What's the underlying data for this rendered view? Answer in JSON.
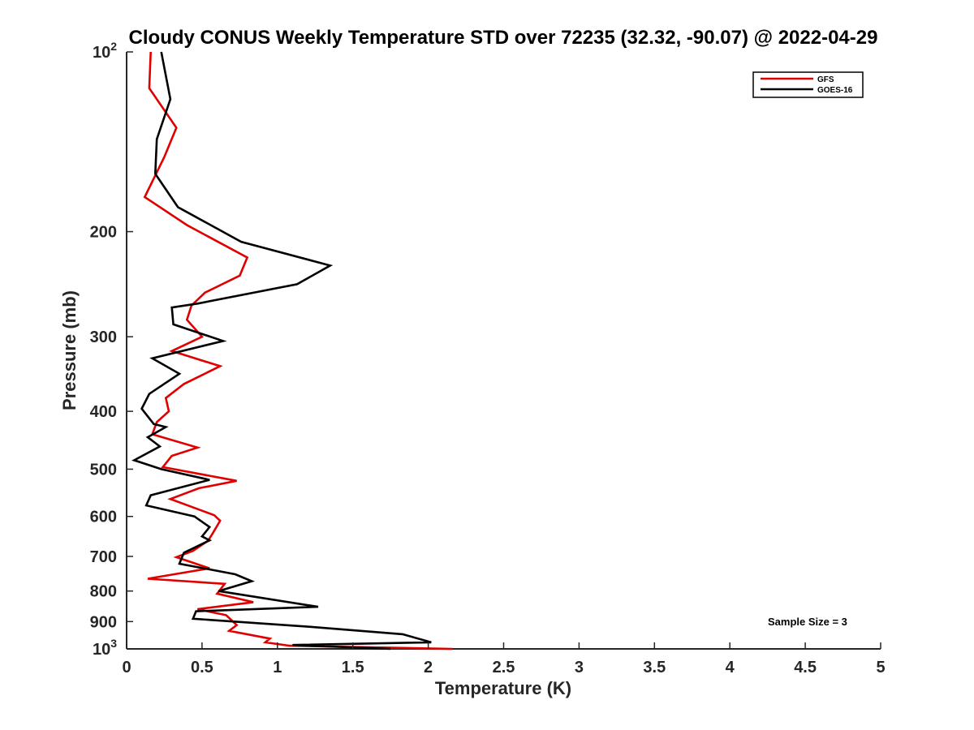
{
  "chart_data": {
    "type": "line",
    "title": "Cloudy CONUS Weekly Temperature STD over 72235 (32.32, -90.07) @ 2022-04-29",
    "xlabel": "Temperature (K)",
    "ylabel": "Pressure (mb)",
    "xlim": [
      0,
      5
    ],
    "ylim": [
      100,
      1000
    ],
    "y_scale": "log",
    "y_reversed": true,
    "grid": false,
    "legend_position": "top-right",
    "x_ticks": [
      {
        "value": 0,
        "label": "0"
      },
      {
        "value": 0.5,
        "label": "0.5"
      },
      {
        "value": 1,
        "label": "1"
      },
      {
        "value": 1.5,
        "label": "1.5"
      },
      {
        "value": 2,
        "label": "2"
      },
      {
        "value": 2.5,
        "label": "2.5"
      },
      {
        "value": 3,
        "label": "3"
      },
      {
        "value": 3.5,
        "label": "3.5"
      },
      {
        "value": 4,
        "label": "4"
      },
      {
        "value": 4.5,
        "label": "4.5"
      },
      {
        "value": 5,
        "label": "5"
      }
    ],
    "y_ticks": [
      {
        "value": 100,
        "label": "10",
        "sup": "2"
      },
      {
        "value": 200,
        "label": "200",
        "sup": ""
      },
      {
        "value": 300,
        "label": "300",
        "sup": ""
      },
      {
        "value": 400,
        "label": "400",
        "sup": ""
      },
      {
        "value": 500,
        "label": "500",
        "sup": ""
      },
      {
        "value": 600,
        "label": "600",
        "sup": ""
      },
      {
        "value": 700,
        "label": "700",
        "sup": ""
      },
      {
        "value": 800,
        "label": "800",
        "sup": ""
      },
      {
        "value": 900,
        "label": "900",
        "sup": ""
      },
      {
        "value": 1000,
        "label": "10",
        "sup": "3"
      }
    ],
    "series": [
      {
        "name": "GFS",
        "color": "#e00000",
        "points": [
          [
            0.16,
            100
          ],
          [
            0.15,
            115
          ],
          [
            0.33,
            134
          ],
          [
            0.25,
            150
          ],
          [
            0.12,
            175
          ],
          [
            0.4,
            195
          ],
          [
            0.8,
            221
          ],
          [
            0.75,
            237
          ],
          [
            0.52,
            253
          ],
          [
            0.43,
            266
          ],
          [
            0.4,
            281
          ],
          [
            0.5,
            300
          ],
          [
            0.3,
            317
          ],
          [
            0.62,
            336
          ],
          [
            0.38,
            360
          ],
          [
            0.26,
            380
          ],
          [
            0.28,
            400
          ],
          [
            0.2,
            417
          ],
          [
            0.17,
            437
          ],
          [
            0.47,
            460
          ],
          [
            0.3,
            475
          ],
          [
            0.24,
            496
          ],
          [
            0.73,
            523
          ],
          [
            0.48,
            538
          ],
          [
            0.29,
            561
          ],
          [
            0.43,
            578
          ],
          [
            0.58,
            597
          ],
          [
            0.62,
            610
          ],
          [
            0.57,
            641
          ],
          [
            0.54,
            659
          ],
          [
            0.44,
            685
          ],
          [
            0.33,
            702
          ],
          [
            0.55,
            733
          ],
          [
            0.14,
            763
          ],
          [
            0.65,
            778
          ],
          [
            0.6,
            808
          ],
          [
            0.84,
            835
          ],
          [
            0.47,
            858
          ],
          [
            0.66,
            878
          ],
          [
            0.73,
            912
          ],
          [
            0.68,
            933
          ],
          [
            0.95,
            961
          ],
          [
            0.92,
            975
          ],
          [
            1.08,
            988
          ],
          [
            2.16,
            1000
          ]
        ]
      },
      {
        "name": "GOES-16",
        "color": "#000000",
        "points": [
          [
            0.23,
            100
          ],
          [
            0.29,
            120
          ],
          [
            0.2,
            140
          ],
          [
            0.19,
            160
          ],
          [
            0.34,
            182
          ],
          [
            0.76,
            208
          ],
          [
            1.35,
            228
          ],
          [
            1.13,
            245
          ],
          [
            0.47,
            264
          ],
          [
            0.3,
            268
          ],
          [
            0.31,
            286
          ],
          [
            0.64,
            305
          ],
          [
            0.17,
            326
          ],
          [
            0.35,
            346
          ],
          [
            0.15,
            374
          ],
          [
            0.1,
            396
          ],
          [
            0.18,
            420
          ],
          [
            0.26,
            425
          ],
          [
            0.14,
            442
          ],
          [
            0.22,
            458
          ],
          [
            0.05,
            483
          ],
          [
            0.23,
            500
          ],
          [
            0.55,
            521
          ],
          [
            0.16,
            553
          ],
          [
            0.13,
            575
          ],
          [
            0.45,
            600
          ],
          [
            0.55,
            625
          ],
          [
            0.5,
            648
          ],
          [
            0.55,
            658
          ],
          [
            0.38,
            690
          ],
          [
            0.35,
            720
          ],
          [
            0.72,
            750
          ],
          [
            0.83,
            770
          ],
          [
            0.61,
            800
          ],
          [
            1.27,
            850
          ],
          [
            0.46,
            865
          ],
          [
            0.44,
            890
          ],
          [
            1.21,
            918
          ],
          [
            1.83,
            945
          ],
          [
            2.02,
            975
          ],
          [
            1.1,
            985
          ],
          [
            1.75,
            1000
          ]
        ]
      }
    ],
    "annotation": "Sample Size = 3"
  }
}
